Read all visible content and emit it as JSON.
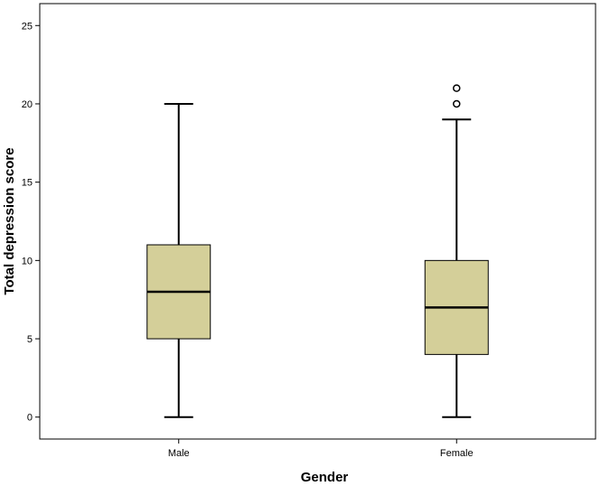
{
  "chart_data": {
    "type": "boxplot",
    "xlabel": "Gender",
    "ylabel": "Total depression score",
    "ylim": [
      -1.4,
      26.4
    ],
    "yticks": [
      0,
      5,
      10,
      15,
      20,
      25
    ],
    "grid": false,
    "legend": "none",
    "box_color": "#d4cf99",
    "categories": [
      "Male",
      "Female"
    ],
    "boxes": [
      {
        "category": "Male",
        "min": 0,
        "q1": 5,
        "median": 8,
        "q3": 11,
        "max": 20,
        "outliers": []
      },
      {
        "category": "Female",
        "min": 0,
        "q1": 4,
        "median": 7,
        "q3": 10,
        "max": 19,
        "outliers": [
          20,
          21
        ]
      }
    ]
  }
}
